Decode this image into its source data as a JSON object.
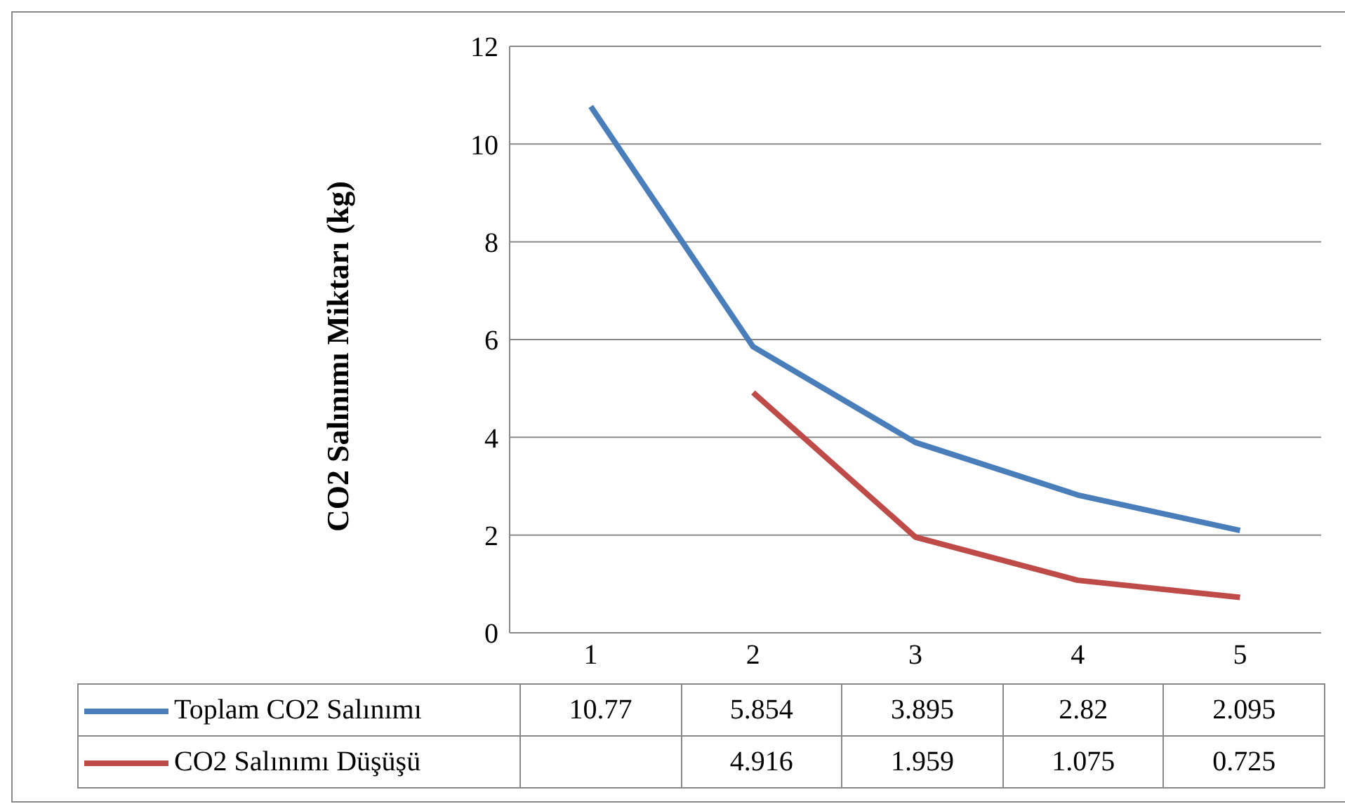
{
  "chart_data": {
    "type": "line",
    "ylabel": "CO2 Salınımı Miktarı (kg)",
    "categories": [
      "1",
      "2",
      "3",
      "4",
      "5"
    ],
    "series": [
      {
        "name": "Toplam CO2 Salınımı",
        "color": "#4a7ebb",
        "values": [
          10.77,
          5.854,
          3.895,
          2.82,
          2.095
        ]
      },
      {
        "name": "CO2 Salınımı Düşüşü",
        "color": "#be4b48",
        "values": [
          null,
          4.916,
          1.959,
          1.075,
          0.725
        ]
      }
    ],
    "ylim": [
      0,
      12
    ],
    "yticks": [
      0,
      2,
      4,
      6,
      8,
      10,
      12
    ],
    "grid": "y",
    "marker": "none",
    "line_style": "solid",
    "data_labels": true,
    "legend": "bottom"
  }
}
